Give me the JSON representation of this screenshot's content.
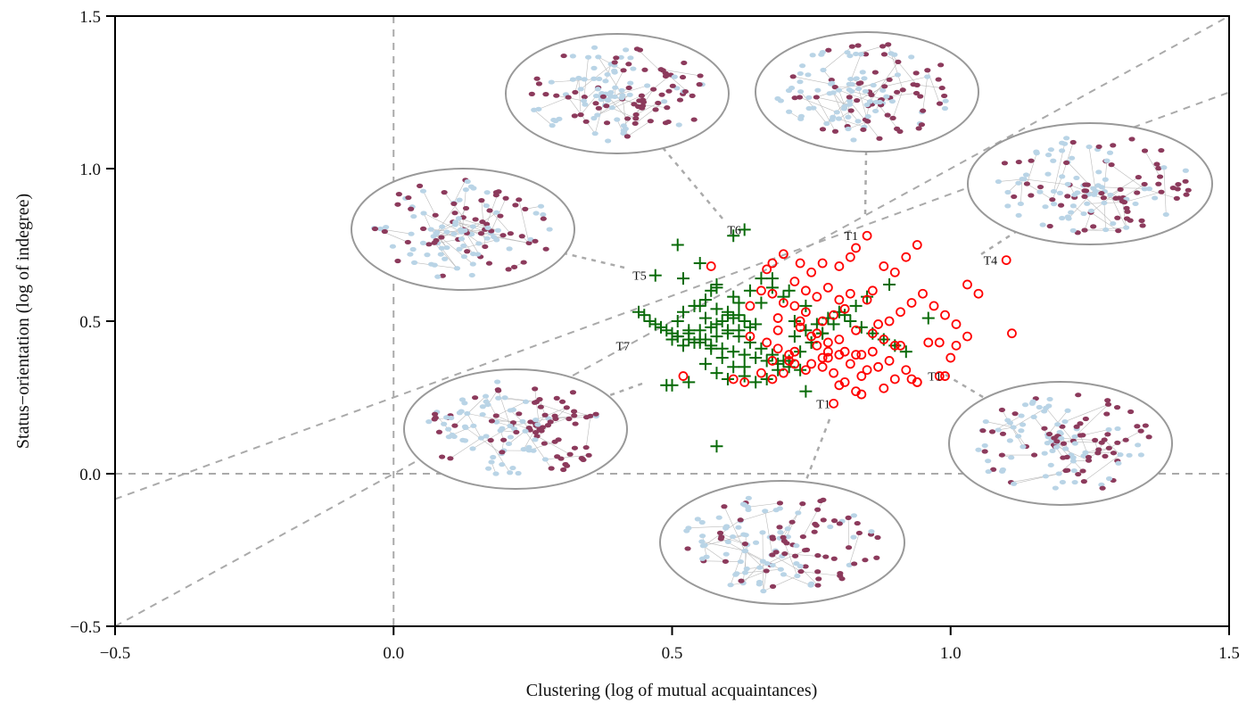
{
  "chart_data": {
    "type": "scatter",
    "xlabel": "Clustering (log of mutual acquaintances)",
    "ylabel": "Status−orientation (log of indegree)",
    "xlim": [
      -0.5,
      1.5
    ],
    "ylim": [
      -0.5,
      1.5
    ],
    "xticks": [
      "−0.5",
      "0.0",
      "0.5",
      "1.0",
      "1.5"
    ],
    "yticks": [
      "−0.5",
      "0.0",
      "0.5",
      "1.0",
      "1.5"
    ],
    "reference_lines": {
      "vertical_x": 0,
      "horizontal_y": 0,
      "diagonals": [
        "y = x",
        "y = x/1.5 + 0.25"
      ]
    },
    "colors": {
      "plus_series": "#0a6b0a",
      "circle_series": "#ff0000",
      "node_light": "#b9d4e6",
      "node_dark": "#8c3a5c",
      "inset_ring": "#999999",
      "ref_line": "#aaaaaa"
    },
    "series": [
      {
        "marker": "plus",
        "x": [
          0.63,
          0.61,
          0.51,
          0.55,
          0.47,
          0.52,
          0.58,
          0.58,
          0.57,
          0.56,
          0.55,
          0.58,
          0.6,
          0.62,
          0.61,
          0.63,
          0.65,
          0.64,
          0.62,
          0.6,
          0.58,
          0.56,
          0.54,
          0.52,
          0.5,
          0.48,
          0.46,
          0.44,
          0.45,
          0.47,
          0.49,
          0.51,
          0.53,
          0.55,
          0.57,
          0.59,
          0.61,
          0.63,
          0.65,
          0.67,
          0.69,
          0.71,
          0.73,
          0.75,
          0.77,
          0.72,
          0.74,
          0.7,
          0.68,
          0.66,
          0.64,
          0.62,
          0.6,
          0.59,
          0.57,
          0.55,
          0.53,
          0.51,
          0.5,
          0.52,
          0.54,
          0.56,
          0.58,
          0.6,
          0.62,
          0.64,
          0.66,
          0.68,
          0.7,
          0.72,
          0.74,
          0.76,
          0.78,
          0.8,
          0.82,
          0.84,
          0.86,
          0.88,
          0.9,
          0.92,
          0.96,
          0.89,
          0.85,
          0.83,
          0.81,
          0.79,
          0.77,
          0.75,
          0.73,
          0.71,
          0.69,
          0.67,
          0.65,
          0.63,
          0.61,
          0.59,
          0.57,
          0.55,
          0.53,
          0.51,
          0.61,
          0.66,
          0.71,
          0.68,
          0.63,
          0.58,
          0.53,
          0.49,
          0.56,
          0.6,
          0.74,
          0.5,
          0.58
        ],
        "y": [
          0.8,
          0.78,
          0.75,
          0.69,
          0.65,
          0.64,
          0.62,
          0.61,
          0.6,
          0.57,
          0.55,
          0.54,
          0.53,
          0.52,
          0.51,
          0.5,
          0.49,
          0.48,
          0.47,
          0.46,
          0.45,
          0.44,
          0.43,
          0.42,
          0.46,
          0.48,
          0.5,
          0.53,
          0.52,
          0.49,
          0.47,
          0.45,
          0.44,
          0.43,
          0.42,
          0.41,
          0.4,
          0.39,
          0.38,
          0.37,
          0.36,
          0.35,
          0.34,
          0.43,
          0.46,
          0.5,
          0.55,
          0.58,
          0.61,
          0.64,
          0.6,
          0.56,
          0.52,
          0.5,
          0.48,
          0.47,
          0.46,
          0.45,
          0.44,
          0.53,
          0.55,
          0.51,
          0.49,
          0.47,
          0.45,
          0.43,
          0.41,
          0.39,
          0.37,
          0.45,
          0.47,
          0.49,
          0.51,
          0.53,
          0.5,
          0.48,
          0.46,
          0.44,
          0.42,
          0.4,
          0.51,
          0.62,
          0.58,
          0.55,
          0.52,
          0.49,
          0.46,
          0.43,
          0.4,
          0.37,
          0.34,
          0.31,
          0.3,
          0.32,
          0.35,
          0.38,
          0.41,
          0.44,
          0.47,
          0.5,
          0.58,
          0.56,
          0.6,
          0.64,
          0.35,
          0.33,
          0.3,
          0.29,
          0.36,
          0.31,
          0.27,
          0.29,
          0.09
        ]
      },
      {
        "marker": "circle",
        "x": [
          0.85,
          0.83,
          0.82,
          0.8,
          0.77,
          0.75,
          0.73,
          0.7,
          0.68,
          0.67,
          0.72,
          0.78,
          0.82,
          0.86,
          0.9,
          0.94,
          0.92,
          0.88,
          0.85,
          0.81,
          0.79,
          0.77,
          0.74,
          0.72,
          0.7,
          0.68,
          0.66,
          0.64,
          0.69,
          0.73,
          0.76,
          0.8,
          0.83,
          0.87,
          0.89,
          0.91,
          0.93,
          0.95,
          0.97,
          0.99,
          1.01,
          1.03,
          1.05,
          1.1,
          1.03,
          0.98,
          0.96,
          0.9,
          0.86,
          0.84,
          0.81,
          0.78,
          0.75,
          0.71,
          0.69,
          0.67,
          0.71,
          0.74,
          0.77,
          0.79,
          0.82,
          0.84,
          0.87,
          0.89,
          0.92,
          0.94,
          0.98,
          1.0,
          1.01,
          1.11,
          0.99,
          0.94,
          0.9,
          0.88,
          0.84,
          0.83,
          0.8,
          0.78,
          0.76,
          0.72,
          0.7,
          0.68,
          0.66,
          0.63,
          0.61,
          0.79,
          0.81,
          0.85,
          0.73,
          0.69,
          0.75,
          0.78,
          0.8,
          0.76,
          0.74,
          0.86,
          0.88,
          0.91,
          0.52,
          0.57,
          0.64,
          0.68,
          0.72,
          0.77,
          0.83,
          0.93,
          0.8
        ],
        "y": [
          0.78,
          0.74,
          0.71,
          0.68,
          0.69,
          0.66,
          0.69,
          0.72,
          0.69,
          0.67,
          0.63,
          0.61,
          0.59,
          0.6,
          0.66,
          0.75,
          0.71,
          0.68,
          0.57,
          0.54,
          0.52,
          0.5,
          0.53,
          0.55,
          0.56,
          0.59,
          0.6,
          0.55,
          0.51,
          0.48,
          0.46,
          0.44,
          0.47,
          0.49,
          0.5,
          0.53,
          0.56,
          0.59,
          0.55,
          0.52,
          0.49,
          0.62,
          0.59,
          0.7,
          0.45,
          0.43,
          0.43,
          0.42,
          0.4,
          0.39,
          0.4,
          0.38,
          0.36,
          0.39,
          0.41,
          0.43,
          0.37,
          0.34,
          0.35,
          0.33,
          0.36,
          0.32,
          0.35,
          0.37,
          0.34,
          0.3,
          0.32,
          0.38,
          0.42,
          0.46,
          0.32,
          0.3,
          0.31,
          0.28,
          0.26,
          0.27,
          0.29,
          0.4,
          0.42,
          0.36,
          0.33,
          0.31,
          0.33,
          0.3,
          0.31,
          0.23,
          0.3,
          0.34,
          0.5,
          0.47,
          0.45,
          0.43,
          0.57,
          0.58,
          0.6,
          0.46,
          0.44,
          0.42,
          0.32,
          0.68,
          0.45,
          0.37,
          0.4,
          0.38,
          0.39,
          0.31,
          0.39
        ]
      }
    ],
    "annotations": [
      {
        "text": "T6",
        "x": 0.64,
        "y": 0.8,
        "side": "left"
      },
      {
        "text": "T1",
        "x": 0.85,
        "y": 0.78,
        "side": "left"
      },
      {
        "text": "T4",
        "x": 1.1,
        "y": 0.7,
        "side": "left"
      },
      {
        "text": "T5",
        "x": 0.47,
        "y": 0.65,
        "side": "left"
      },
      {
        "text": "T7",
        "x": 0.44,
        "y": 0.42,
        "side": "left"
      },
      {
        "text": "T1",
        "x": 1.0,
        "y": 0.32,
        "side": "left"
      },
      {
        "text": "T1",
        "x": 0.8,
        "y": 0.23,
        "side": "left"
      }
    ]
  }
}
